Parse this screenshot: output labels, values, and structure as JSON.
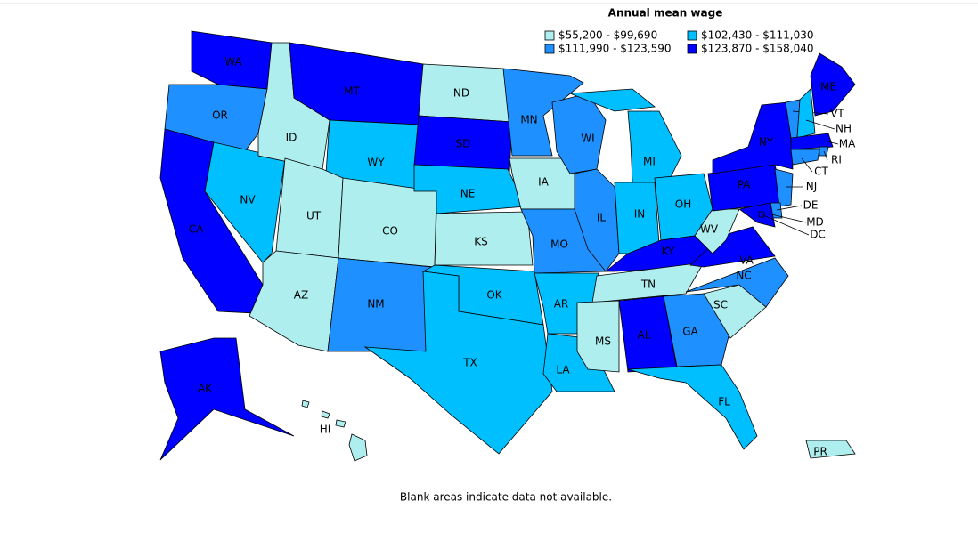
{
  "title": "Annual mean wage",
  "legend": [
    {
      "label": "$55,200 - $99,690",
      "color": "#afeeee"
    },
    {
      "label": "$102,430 - $111,030",
      "color": "#00bfff"
    },
    {
      "label": "$111,990 - $123,590",
      "color": "#1e90ff"
    },
    {
      "label": "$123,870 - $158,040",
      "color": "#0000ff"
    }
  ],
  "states": [
    {
      "abbr": "WA",
      "color": "#0000ff"
    },
    {
      "abbr": "OR",
      "color": "#1e90ff"
    },
    {
      "abbr": "CA",
      "color": "#0000ff"
    },
    {
      "abbr": "NV",
      "color": "#00bfff"
    },
    {
      "abbr": "ID",
      "color": "#afeeee"
    },
    {
      "abbr": "MT",
      "color": "#0000ff"
    },
    {
      "abbr": "WY",
      "color": "#00bfff"
    },
    {
      "abbr": "UT",
      "color": "#afeeee"
    },
    {
      "abbr": "CO",
      "color": "#afeeee"
    },
    {
      "abbr": "AZ",
      "color": "#afeeee"
    },
    {
      "abbr": "NM",
      "color": "#1e90ff"
    },
    {
      "abbr": "ND",
      "color": "#afeeee"
    },
    {
      "abbr": "SD",
      "color": "#0000ff"
    },
    {
      "abbr": "NE",
      "color": "#00bfff"
    },
    {
      "abbr": "KS",
      "color": "#afeeee"
    },
    {
      "abbr": "OK",
      "color": "#00bfff"
    },
    {
      "abbr": "TX",
      "color": "#00bfff"
    },
    {
      "abbr": "MN",
      "color": "#1e90ff"
    },
    {
      "abbr": "IA",
      "color": "#afeeee"
    },
    {
      "abbr": "MO",
      "color": "#1e90ff"
    },
    {
      "abbr": "AR",
      "color": "#00bfff"
    },
    {
      "abbr": "LA",
      "color": "#00bfff"
    },
    {
      "abbr": "WI",
      "color": "#1e90ff"
    },
    {
      "abbr": "IL",
      "color": "#1e90ff"
    },
    {
      "abbr": "MI",
      "color": "#00bfff"
    },
    {
      "abbr": "IN",
      "color": "#00bfff"
    },
    {
      "abbr": "OH",
      "color": "#00bfff"
    },
    {
      "abbr": "KY",
      "color": "#0000ff"
    },
    {
      "abbr": "TN",
      "color": "#afeeee"
    },
    {
      "abbr": "MS",
      "color": "#afeeee"
    },
    {
      "abbr": "AL",
      "color": "#0000ff"
    },
    {
      "abbr": "GA",
      "color": "#1e90ff"
    },
    {
      "abbr": "FL",
      "color": "#00bfff"
    },
    {
      "abbr": "SC",
      "color": "#afeeee"
    },
    {
      "abbr": "NC",
      "color": "#1e90ff"
    },
    {
      "abbr": "VA",
      "color": "#0000ff"
    },
    {
      "abbr": "WV",
      "color": "#afeeee"
    },
    {
      "abbr": "PA",
      "color": "#0000ff"
    },
    {
      "abbr": "NY",
      "color": "#0000ff"
    },
    {
      "abbr": "ME",
      "color": "#0000ff"
    },
    {
      "abbr": "VT",
      "color": "#1e90ff"
    },
    {
      "abbr": "NH",
      "color": "#00bfff"
    },
    {
      "abbr": "MA",
      "color": "#0000ff"
    },
    {
      "abbr": "RI",
      "color": "#1e90ff"
    },
    {
      "abbr": "CT",
      "color": "#1e90ff"
    },
    {
      "abbr": "NJ",
      "color": "#1e90ff"
    },
    {
      "abbr": "DE",
      "color": "#1e90ff"
    },
    {
      "abbr": "MD",
      "color": "#0000ff"
    },
    {
      "abbr": "DC",
      "color": "#0000ff"
    },
    {
      "abbr": "AK",
      "color": "#0000ff"
    },
    {
      "abbr": "HI",
      "color": "#afeeee"
    },
    {
      "abbr": "PR",
      "color": "#afeeee"
    }
  ],
  "note": "Blank areas indicate data not available."
}
